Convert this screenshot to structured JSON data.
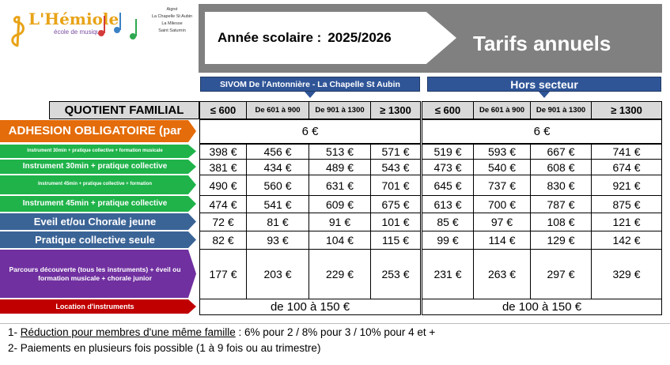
{
  "logo": {
    "name": "L'Hémiole",
    "subtitle": "école de musique",
    "communes": [
      "Aigné",
      "La Chapelle St Aubin",
      "La Milesse",
      "Saint Saturnin"
    ]
  },
  "banner": {
    "school_year_label": "Année scolaire :",
    "school_year": "2025/2026",
    "title": "Tarifs annuels"
  },
  "table": {
    "groups": [
      "SIVOM De l'Antonnière - La Chapelle St Aubin",
      "Hors  secteur"
    ],
    "header_label": "QUOTIENT FAMILIAL",
    "columns": [
      "≤ 600",
      "De 601 à 900",
      "De 901 à 1300",
      "≥ 1300"
    ],
    "rows": [
      {
        "label": "ADHESION OBLIGATOIRE  (par",
        "color": "#e46c0a",
        "cells": [
          "6 €",
          "6 €"
        ]
      },
      {
        "label": "Instrument 30min + pratique collective + formation musicale",
        "color": "#1fb34a",
        "cells": [
          "398 €",
          "456 €",
          "513 €",
          "571 €",
          "519 €",
          "593 €",
          "667 €",
          "741 €"
        ]
      },
      {
        "label": "Instrument 30min + pratique collective",
        "color": "#1fb34a",
        "cells": [
          "381 €",
          "434 €",
          "489 €",
          "543 €",
          "473 €",
          "540 €",
          "608 €",
          "674 €"
        ]
      },
      {
        "label": "Instrument 45min + pratique collective + formation",
        "color": "#1fb34a",
        "cells": [
          "490 €",
          "560 €",
          "631 €",
          "701 €",
          "645 €",
          "737 €",
          "830 €",
          "921 €"
        ]
      },
      {
        "label": "Instrument 45min + pratique collective",
        "color": "#1fb34a",
        "cells": [
          "474 €",
          "541 €",
          "609 €",
          "675 €",
          "613 €",
          "700 €",
          "787 €",
          "875 €"
        ]
      },
      {
        "label": "Eveil et/ou Chorale jeune",
        "color": "#3b6496",
        "cells": [
          "72 €",
          "81 €",
          "91 €",
          "101 €",
          "85 €",
          "97 €",
          "108 €",
          "121 €"
        ]
      },
      {
        "label": "Pratique collective seule",
        "color": "#3b6496",
        "cells": [
          "82 €",
          "93 €",
          "104 €",
          "115 €",
          "99 €",
          "114 €",
          "129 €",
          "142 €"
        ]
      },
      {
        "label": "Parcours découverte (tous les instruments) + éveil ou formation musicale + chorale junior",
        "color": "#7030a0",
        "cells": [
          "177 €",
          "203 €",
          "229 €",
          "253 €",
          "231 €",
          "263 €",
          "297 €",
          "329 €"
        ]
      },
      {
        "label": "Location d'instruments",
        "color": "#c00000",
        "cells": [
          "de 100 à 150 €",
          "de 100 à 150 €"
        ]
      }
    ]
  },
  "footnotes": [
    {
      "prefix": "1-",
      "underlined": "Réduction pour membres d'une même famille",
      "rest": ": 6% pour 2 / 8% pour 3 / 10% pour 4 et +"
    },
    {
      "text": "2- Paiements en plusieurs fois possible (1 à 9 fois ou au trimestre)"
    }
  ]
}
